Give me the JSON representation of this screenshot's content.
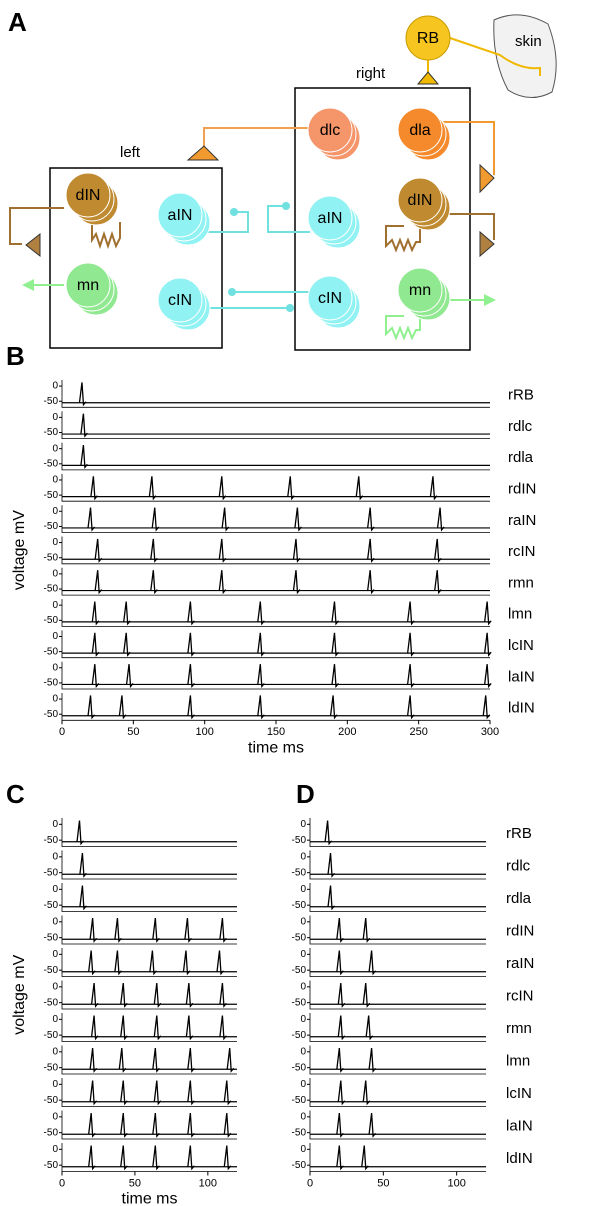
{
  "panel_a": {
    "label": "A",
    "left": "left",
    "right": "right",
    "skin": "skin",
    "nodes": [
      "RB",
      "dlc",
      "dla",
      "dIN",
      "aIN",
      "cIN",
      "mn",
      "dIN",
      "aIN",
      "mn",
      "cIN"
    ]
  },
  "panel_b": {
    "label": "B",
    "type": "line",
    "ylabel": "voltage mV",
    "xlabel": "time ms",
    "xlim": [
      0,
      300
    ],
    "xticks": [
      0,
      50,
      100,
      150,
      200,
      250,
      300
    ],
    "ylim": [
      -70,
      20
    ],
    "yticks": [
      0,
      -50
    ],
    "traces": [
      {
        "name": "rRB",
        "spikes": [
          14
        ]
      },
      {
        "name": "rdlc",
        "spikes": [
          15
        ]
      },
      {
        "name": "rdla",
        "spikes": [
          15
        ]
      },
      {
        "name": "rdIN",
        "spikes": [
          22,
          63,
          112,
          160,
          208,
          260
        ]
      },
      {
        "name": "raIN",
        "spikes": [
          20,
          65,
          114,
          165,
          216,
          265
        ]
      },
      {
        "name": "rcIN",
        "spikes": [
          25,
          64,
          112,
          164,
          216,
          263
        ]
      },
      {
        "name": "rmn",
        "spikes": [
          25,
          64,
          112,
          164,
          216,
          263
        ]
      },
      {
        "name": "lmn",
        "spikes": [
          23,
          45,
          90,
          139,
          191,
          244,
          298
        ]
      },
      {
        "name": "lcIN",
        "spikes": [
          23,
          45,
          90,
          139,
          191,
          244,
          298
        ]
      },
      {
        "name": "laIN",
        "spikes": [
          23,
          47,
          90,
          139,
          191,
          244,
          298
        ]
      },
      {
        "name": "ldIN",
        "spikes": [
          20,
          42,
          90,
          139,
          190,
          244,
          297
        ]
      }
    ]
  },
  "panel_c": {
    "label": "C",
    "type": "line",
    "ylabel": "voltage mV",
    "xlabel": "time ms",
    "xlim": [
      0,
      120
    ],
    "xticks": [
      0,
      50,
      100
    ],
    "ylim": [
      -70,
      20
    ],
    "yticks": [
      0,
      -50
    ],
    "traces": [
      {
        "spikes": [
          12
        ]
      },
      {
        "spikes": [
          14
        ]
      },
      {
        "spikes": [
          14
        ]
      },
      {
        "spikes": [
          21,
          38,
          64,
          86,
          110
        ]
      },
      {
        "spikes": [
          20,
          38,
          62,
          85,
          108
        ]
      },
      {
        "spikes": [
          22,
          42,
          65,
          87,
          110
        ]
      },
      {
        "spikes": [
          22,
          42,
          65,
          87,
          110
        ]
      },
      {
        "spikes": [
          21,
          41,
          64,
          88,
          115
        ]
      },
      {
        "spikes": [
          21,
          42,
          65,
          88,
          113
        ]
      },
      {
        "spikes": [
          20,
          42,
          64,
          88,
          113
        ]
      },
      {
        "spikes": [
          20,
          42,
          64,
          88,
          113
        ]
      }
    ]
  },
  "panel_d": {
    "label": "D",
    "type": "line",
    "xlim": [
      0,
      120
    ],
    "xticks": [
      0,
      50,
      100
    ],
    "ylim": [
      -70,
      20
    ],
    "yticks": [
      0,
      -50
    ],
    "traces": [
      {
        "name": "rRB",
        "spikes": [
          12
        ]
      },
      {
        "name": "rdlc",
        "spikes": [
          14
        ]
      },
      {
        "name": "rdla",
        "spikes": [
          14
        ]
      },
      {
        "name": "rdIN",
        "spikes": [
          20,
          38
        ]
      },
      {
        "name": "raIN",
        "spikes": [
          20,
          42
        ]
      },
      {
        "name": "rcIN",
        "spikes": [
          21,
          38
        ]
      },
      {
        "name": "rmn",
        "spikes": [
          21,
          40
        ]
      },
      {
        "name": "lmn",
        "spikes": [
          20,
          42
        ]
      },
      {
        "name": "lcIN",
        "spikes": [
          21,
          38
        ]
      },
      {
        "name": "laIN",
        "spikes": [
          20,
          42
        ]
      },
      {
        "name": "ldIN",
        "spikes": [
          20,
          37
        ]
      }
    ]
  }
}
